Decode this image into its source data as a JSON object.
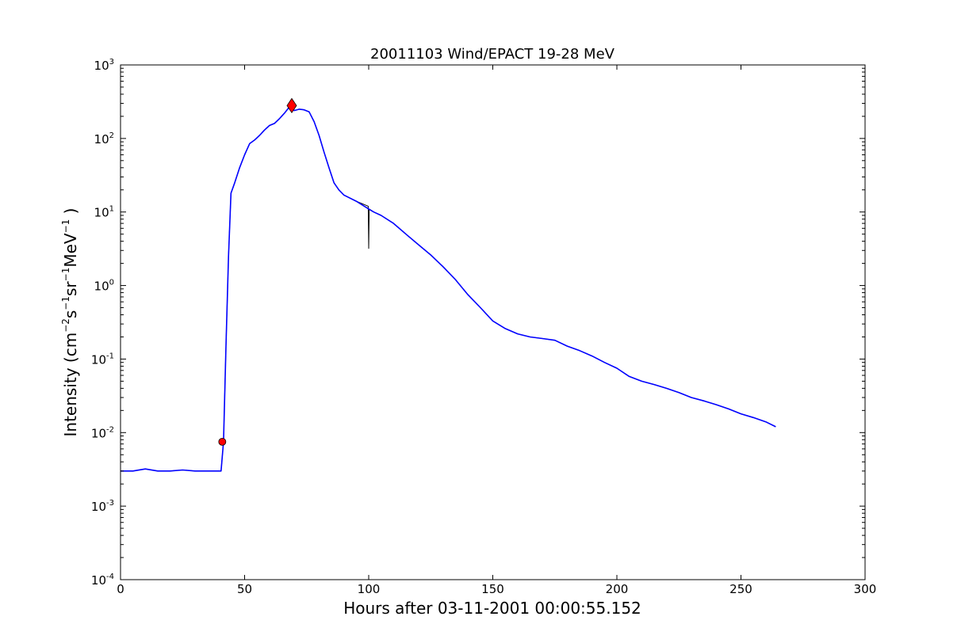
{
  "chart_data": {
    "type": "line",
    "title": "20011103 Wind/EPACT 19-28 MeV",
    "xlabel": "Hours after 03-11-2001 00:00:55.152",
    "ylabel": {
      "prefix": "Intensity (cm",
      "e1": "−2",
      "mid1": "s",
      "e2": "−1",
      "mid2": "sr",
      "e3": "−1",
      "mid3": "MeV",
      "e4": "−1",
      "suffix": " )"
    },
    "xscale": "linear",
    "yscale": "log",
    "xlim": [
      0,
      300
    ],
    "ylim": [
      0.0001,
      1000
    ],
    "xticks": [
      0,
      50,
      100,
      150,
      200,
      250,
      300
    ],
    "yticks": [
      {
        "value": 0.0001,
        "base": "10",
        "exp": "-4"
      },
      {
        "value": 0.001,
        "base": "10",
        "exp": "-3"
      },
      {
        "value": 0.01,
        "base": "10",
        "exp": "-2"
      },
      {
        "value": 0.1,
        "base": "10",
        "exp": "-1"
      },
      {
        "value": 1,
        "base": "10",
        "exp": "0"
      },
      {
        "value": 10,
        "base": "10",
        "exp": "1"
      },
      {
        "value": 100,
        "base": "10",
        "exp": "2"
      },
      {
        "value": 1000,
        "base": "10",
        "exp": "3"
      }
    ],
    "grid": false,
    "colors": {
      "raw": "#000000",
      "smoothed": "#0000ff",
      "marker": "#ff0000"
    },
    "series": [
      {
        "role": "raw",
        "x": [
          0,
          5,
          10,
          15,
          20,
          25,
          30,
          35,
          40.5,
          41.5,
          42.5,
          43.5,
          44.5,
          46,
          48,
          50,
          52,
          54,
          56,
          58,
          60,
          62,
          64,
          66,
          68.5,
          70,
          72,
          74,
          76,
          78,
          80,
          82,
          84,
          86,
          88,
          90,
          95,
          99.8,
          100,
          100.2,
          102,
          105,
          110,
          115,
          120,
          125,
          130,
          135,
          140,
          145,
          150,
          155,
          160,
          165,
          170,
          175,
          180,
          185,
          190,
          195,
          200,
          205,
          210,
          215,
          220,
          225,
          230,
          235,
          240,
          245,
          250,
          255,
          260,
          264
        ],
        "y": [
          0.003,
          0.003,
          0.0032,
          0.003,
          0.003,
          0.0031,
          0.003,
          0.003,
          0.003,
          0.0075,
          0.15,
          2.5,
          18,
          25,
          40,
          60,
          85,
          95,
          110,
          130,
          150,
          160,
          185,
          220,
          280,
          240,
          250,
          245,
          230,
          170,
          110,
          65,
          40,
          25,
          20,
          17,
          14,
          12,
          3.2,
          11,
          10,
          9,
          7,
          5,
          3.6,
          2.6,
          1.8,
          1.2,
          0.75,
          0.5,
          0.33,
          0.26,
          0.22,
          0.2,
          0.19,
          0.18,
          0.15,
          0.13,
          0.11,
          0.09,
          0.075,
          0.058,
          0.05,
          0.045,
          0.04,
          0.035,
          0.03,
          0.027,
          0.024,
          0.021,
          0.018,
          0.016,
          0.014,
          0.012
        ]
      },
      {
        "role": "smoothed",
        "x": [
          0,
          5,
          10,
          15,
          20,
          25,
          30,
          35,
          40.5,
          41.5,
          42.5,
          43.5,
          44.5,
          46,
          48,
          50,
          52,
          54,
          56,
          58,
          60,
          62,
          64,
          66,
          68.5,
          70,
          72,
          74,
          76,
          78,
          80,
          82,
          84,
          86,
          88,
          90,
          95,
          100,
          102,
          105,
          110,
          115,
          120,
          125,
          130,
          135,
          140,
          145,
          150,
          155,
          160,
          165,
          170,
          175,
          180,
          185,
          190,
          195,
          200,
          205,
          210,
          215,
          220,
          225,
          230,
          235,
          240,
          245,
          250,
          255,
          260,
          264
        ],
        "y": [
          0.003,
          0.003,
          0.0032,
          0.003,
          0.003,
          0.0031,
          0.003,
          0.003,
          0.003,
          0.0075,
          0.15,
          2.5,
          18,
          25,
          40,
          60,
          85,
          95,
          110,
          130,
          150,
          160,
          185,
          220,
          280,
          240,
          250,
          245,
          230,
          170,
          110,
          65,
          40,
          25,
          20,
          17,
          14,
          11,
          10,
          9,
          7,
          5,
          3.6,
          2.6,
          1.8,
          1.2,
          0.75,
          0.5,
          0.33,
          0.26,
          0.22,
          0.2,
          0.19,
          0.18,
          0.15,
          0.13,
          0.11,
          0.09,
          0.075,
          0.058,
          0.05,
          0.045,
          0.04,
          0.035,
          0.03,
          0.027,
          0.024,
          0.021,
          0.018,
          0.016,
          0.014,
          0.012
        ]
      }
    ],
    "markers": [
      {
        "shape": "circle",
        "x": 41,
        "y": 0.0075
      },
      {
        "shape": "diamond",
        "x": 69,
        "y": 280
      }
    ]
  }
}
